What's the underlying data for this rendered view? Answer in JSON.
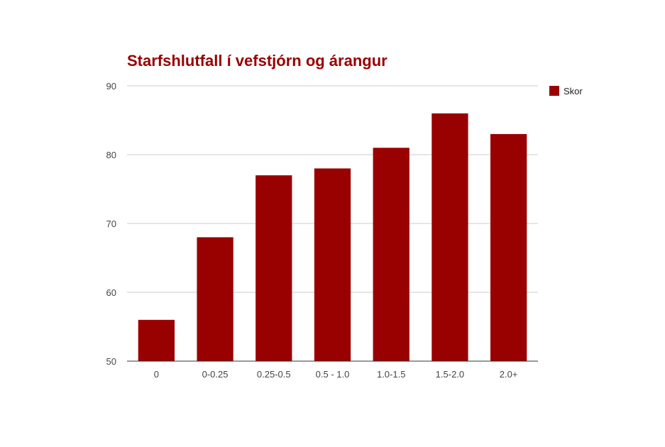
{
  "chart_data": {
    "type": "bar",
    "title": "Starfshlutfall í vefstjórn og árangur",
    "categories": [
      "0",
      "0-0.25",
      "0.25-0.5",
      "0.5 - 1.0",
      "1.0-1.5",
      "1.5-2.0",
      "2.0+"
    ],
    "series": [
      {
        "name": "Skor",
        "values": [
          56,
          68,
          77,
          78,
          81,
          86,
          83
        ]
      }
    ],
    "ylim": [
      50,
      90
    ],
    "yticks": [
      50,
      60,
      70,
      80,
      90
    ],
    "grid": true,
    "legend_position": "right",
    "colors": {
      "bar": "#990000",
      "title": "#990000",
      "grid": "#cccccc",
      "axis": "#333333"
    }
  }
}
